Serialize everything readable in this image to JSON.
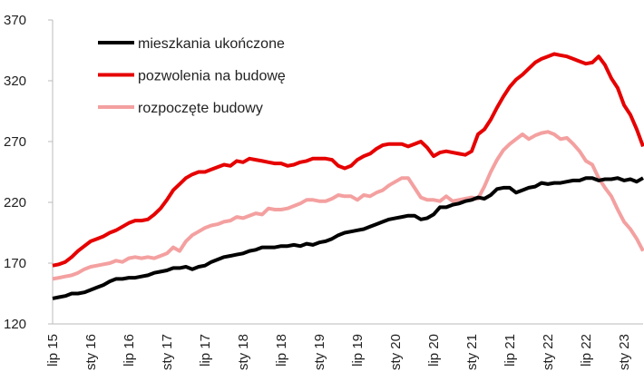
{
  "chart_data": {
    "type": "line",
    "categories": [
      "lip 15",
      null,
      null,
      null,
      null,
      null,
      "sty 16",
      null,
      null,
      null,
      null,
      null,
      "lip 16",
      null,
      null,
      null,
      null,
      null,
      "sty 17",
      null,
      null,
      null,
      null,
      null,
      "lip 17",
      null,
      null,
      null,
      null,
      null,
      "sty 18",
      null,
      null,
      null,
      null,
      null,
      "lip 18",
      null,
      null,
      null,
      null,
      null,
      "sty 19",
      null,
      null,
      null,
      null,
      null,
      "lip 19",
      null,
      null,
      null,
      null,
      null,
      "sty 20",
      null,
      null,
      null,
      null,
      null,
      "lip 20",
      null,
      null,
      null,
      null,
      null,
      "sty 21",
      null,
      null,
      null,
      null,
      null,
      "lip 21",
      null,
      null,
      null,
      null,
      null,
      "sty 22",
      null,
      null,
      null,
      null,
      null,
      "lip 22",
      null,
      null,
      null,
      null,
      null,
      "sty 23",
      null,
      null,
      null
    ],
    "series": [
      {
        "name": "mieszkania ukończone",
        "color": "#000000",
        "values": [
          141,
          142,
          143,
          145,
          145,
          146,
          148,
          150,
          152,
          155,
          157,
          157,
          158,
          158,
          159,
          160,
          162,
          163,
          164,
          166,
          166,
          167,
          165,
          167,
          168,
          171,
          173,
          175,
          176,
          177,
          178,
          180,
          181,
          183,
          183,
          183,
          184,
          184,
          185,
          184,
          186,
          185,
          187,
          188,
          190,
          193,
          195,
          196,
          197,
          198,
          200,
          202,
          204,
          206,
          207,
          208,
          209,
          209,
          206,
          207,
          210,
          216,
          216,
          218,
          219,
          221,
          222,
          224,
          223,
          226,
          231,
          232,
          232,
          228,
          230,
          232,
          233,
          236,
          235,
          236,
          236,
          237,
          238,
          238,
          240,
          240,
          238,
          239,
          239,
          240,
          238,
          239,
          237,
          240
        ]
      },
      {
        "name": "pozwolenia na budowę",
        "color": "#e60000",
        "values": [
          168,
          169,
          171,
          175,
          180,
          184,
          188,
          190,
          192,
          195,
          197,
          200,
          203,
          205,
          205,
          206,
          210,
          215,
          222,
          230,
          235,
          240,
          243,
          245,
          245,
          247,
          249,
          251,
          250,
          254,
          253,
          256,
          255,
          254,
          253,
          252,
          252,
          250,
          251,
          253,
          254,
          256,
          256,
          256,
          255,
          250,
          248,
          250,
          255,
          258,
          260,
          264,
          267,
          268,
          268,
          268,
          266,
          268,
          270,
          265,
          258,
          261,
          262,
          261,
          260,
          259,
          262,
          276,
          280,
          288,
          298,
          307,
          315,
          321,
          325,
          330,
          335,
          338,
          340,
          342,
          341,
          340,
          338,
          336,
          334,
          335,
          340,
          333,
          322,
          314,
          300,
          292,
          280,
          266
        ]
      },
      {
        "name": "rozpoczęte budowy",
        "color": "#f4a0a0",
        "values": [
          157,
          158,
          159,
          160,
          162,
          165,
          167,
          168,
          169,
          170,
          172,
          171,
          174,
          175,
          174,
          175,
          174,
          176,
          178,
          183,
          180,
          188,
          193,
          196,
          199,
          201,
          202,
          204,
          205,
          208,
          207,
          209,
          211,
          210,
          215,
          214,
          214,
          215,
          217,
          219,
          222,
          222,
          221,
          221,
          223,
          226,
          225,
          225,
          222,
          226,
          225,
          228,
          230,
          234,
          237,
          240,
          240,
          232,
          224,
          222,
          222,
          221,
          225,
          221,
          222,
          223,
          224,
          223,
          233,
          245,
          255,
          263,
          268,
          272,
          276,
          272,
          275,
          277,
          278,
          276,
          272,
          273,
          268,
          262,
          254,
          251,
          240,
          232,
          225,
          214,
          204,
          198,
          190,
          180
        ]
      }
    ],
    "ylim": [
      120,
      370
    ],
    "yticks": [
      120,
      170,
      220,
      270,
      320,
      370
    ],
    "legend": "upper left"
  }
}
